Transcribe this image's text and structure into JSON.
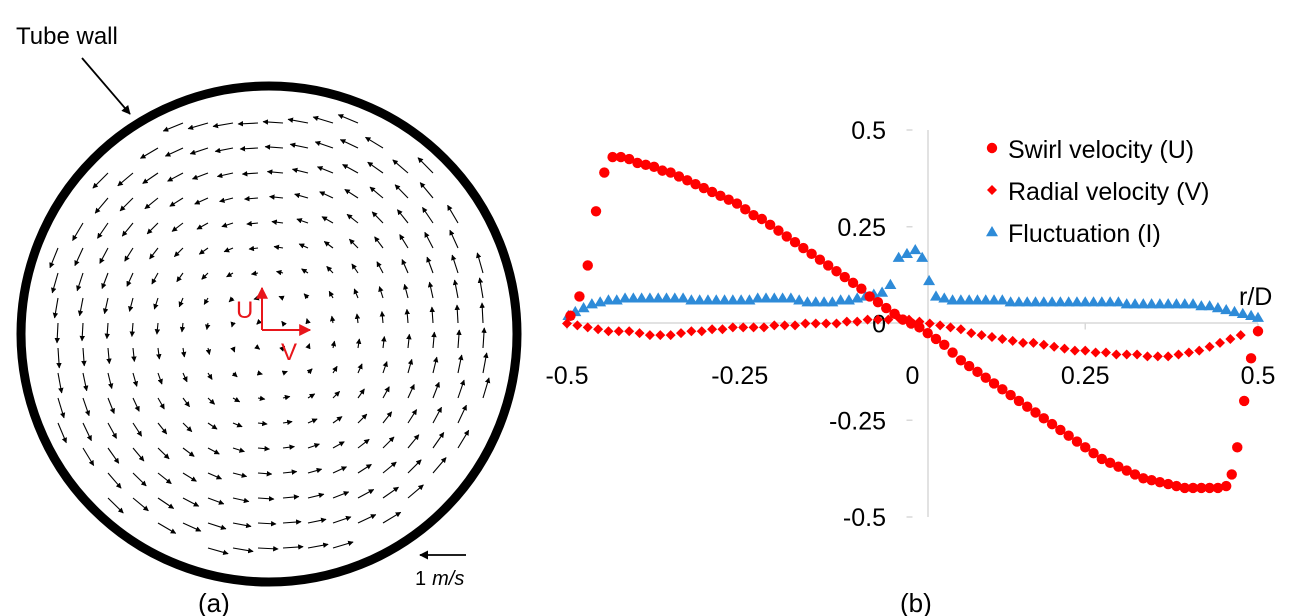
{
  "panel_a": {
    "wall_label": "Tube wall",
    "u_label": "U",
    "v_label": "V",
    "scale_label_number": "1",
    "scale_label_unit": "m/s",
    "caption": "(a)",
    "accent_color": "#e8161b"
  },
  "panel_b": {
    "caption": "(b)"
  },
  "chart_data": {
    "type": "scatter",
    "xlabel": "r/D",
    "ylabel": "",
    "xlim": [
      -0.5,
      0.5
    ],
    "ylim": [
      -0.5,
      0.5
    ],
    "x_ticks": [
      "-0.5",
      "-0.25",
      "0",
      "0.25",
      "0.5"
    ],
    "y_ticks": [
      "0.5",
      "0.25",
      "0",
      "-0.25",
      "-0.5"
    ],
    "grid": false,
    "legend_position": "top-right",
    "series": [
      {
        "name": "Swirl velocity (U)",
        "marker": "circle",
        "color": "#ff0000",
        "x": [
          -0.495,
          -0.482,
          -0.47,
          -0.458,
          -0.446,
          -0.434,
          -0.422,
          -0.41,
          -0.398,
          -0.386,
          -0.374,
          -0.362,
          -0.35,
          -0.338,
          -0.326,
          -0.314,
          -0.302,
          -0.29,
          -0.278,
          -0.266,
          -0.254,
          -0.242,
          -0.23,
          -0.218,
          -0.206,
          -0.194,
          -0.182,
          -0.17,
          -0.158,
          -0.146,
          -0.134,
          -0.122,
          -0.11,
          -0.098,
          -0.086,
          -0.074,
          -0.062,
          -0.05,
          -0.038,
          -0.026,
          -0.014,
          -0.002,
          0.01,
          0.022,
          0.034,
          0.046,
          0.058,
          0.07,
          0.082,
          0.094,
          0.106,
          0.118,
          0.13,
          0.142,
          0.154,
          0.166,
          0.178,
          0.19,
          0.202,
          0.214,
          0.226,
          0.238,
          0.25,
          0.262,
          0.274,
          0.286,
          0.298,
          0.31,
          0.322,
          0.334,
          0.346,
          0.358,
          0.37,
          0.382,
          0.394,
          0.406,
          0.418,
          0.43,
          0.442,
          0.454,
          0.462,
          0.47,
          0.48,
          0.49,
          0.5
        ],
        "y": [
          0.02,
          0.07,
          0.15,
          0.29,
          0.39,
          0.43,
          0.43,
          0.425,
          0.415,
          0.41,
          0.405,
          0.395,
          0.39,
          0.38,
          0.37,
          0.36,
          0.35,
          0.34,
          0.33,
          0.32,
          0.31,
          0.295,
          0.28,
          0.27,
          0.255,
          0.24,
          0.225,
          0.21,
          0.195,
          0.18,
          0.165,
          0.15,
          0.135,
          0.12,
          0.105,
          0.09,
          0.07,
          0.055,
          0.04,
          0.025,
          0.01,
          0.0,
          -0.01,
          -0.025,
          -0.04,
          -0.055,
          -0.075,
          -0.095,
          -0.11,
          -0.125,
          -0.14,
          -0.155,
          -0.17,
          -0.185,
          -0.2,
          -0.215,
          -0.23,
          -0.245,
          -0.26,
          -0.275,
          -0.29,
          -0.305,
          -0.32,
          -0.335,
          -0.35,
          -0.36,
          -0.37,
          -0.38,
          -0.39,
          -0.4,
          -0.405,
          -0.41,
          -0.415,
          -0.42,
          -0.425,
          -0.425,
          -0.425,
          -0.425,
          -0.425,
          -0.42,
          -0.39,
          -0.32,
          -0.2,
          -0.09,
          -0.02
        ]
      },
      {
        "name": "Radial velocity (V)",
        "marker": "diamond",
        "color": "#ff0000",
        "x": [
          -0.5,
          -0.485,
          -0.47,
          -0.455,
          -0.44,
          -0.425,
          -0.41,
          -0.395,
          -0.38,
          -0.365,
          -0.35,
          -0.335,
          -0.32,
          -0.305,
          -0.29,
          -0.275,
          -0.26,
          -0.245,
          -0.23,
          -0.215,
          -0.2,
          -0.185,
          -0.17,
          -0.155,
          -0.14,
          -0.125,
          -0.11,
          -0.095,
          -0.08,
          -0.065,
          -0.05,
          -0.035,
          -0.02,
          -0.005,
          0.01,
          0.025,
          0.04,
          0.055,
          0.07,
          0.085,
          0.1,
          0.115,
          0.13,
          0.145,
          0.16,
          0.175,
          0.19,
          0.205,
          0.22,
          0.235,
          0.25,
          0.265,
          0.28,
          0.295,
          0.31,
          0.325,
          0.34,
          0.355,
          0.37,
          0.385,
          0.4,
          0.415,
          0.43,
          0.445,
          0.46,
          0.475
        ],
        "y": [
          0.0,
          -0.005,
          -0.01,
          -0.015,
          -0.02,
          -0.02,
          -0.02,
          -0.025,
          -0.03,
          -0.03,
          -0.03,
          -0.025,
          -0.02,
          -0.02,
          -0.015,
          -0.015,
          -0.01,
          -0.01,
          -0.01,
          -0.01,
          -0.005,
          -0.005,
          -0.005,
          0.0,
          0.0,
          0.0,
          0.0,
          0.005,
          0.005,
          0.01,
          0.01,
          0.01,
          0.015,
          0.01,
          0.005,
          0.0,
          -0.005,
          -0.01,
          -0.015,
          -0.025,
          -0.03,
          -0.035,
          -0.04,
          -0.045,
          -0.05,
          -0.05,
          -0.055,
          -0.06,
          -0.065,
          -0.07,
          -0.07,
          -0.075,
          -0.075,
          -0.08,
          -0.08,
          -0.08,
          -0.085,
          -0.085,
          -0.085,
          -0.08,
          -0.075,
          -0.07,
          -0.06,
          -0.05,
          -0.04,
          -0.03
        ]
      },
      {
        "name": "Fluctuation (I)",
        "marker": "triangle",
        "color": "#2e8bd8",
        "x": [
          -0.498,
          -0.488,
          -0.476,
          -0.464,
          -0.452,
          -0.44,
          -0.428,
          -0.416,
          -0.404,
          -0.392,
          -0.38,
          -0.368,
          -0.356,
          -0.344,
          -0.332,
          -0.32,
          -0.308,
          -0.296,
          -0.284,
          -0.272,
          -0.26,
          -0.248,
          -0.236,
          -0.224,
          -0.212,
          -0.2,
          -0.188,
          -0.176,
          -0.164,
          -0.152,
          -0.14,
          -0.128,
          -0.116,
          -0.104,
          -0.092,
          -0.08,
          -0.068,
          -0.056,
          -0.044,
          -0.032,
          -0.02,
          -0.008,
          0.004,
          0.014,
          0.024,
          0.034,
          0.046,
          0.058,
          0.07,
          0.082,
          0.094,
          0.106,
          0.118,
          0.13,
          0.142,
          0.154,
          0.166,
          0.178,
          0.19,
          0.202,
          0.214,
          0.226,
          0.238,
          0.25,
          0.262,
          0.274,
          0.286,
          0.298,
          0.31,
          0.322,
          0.334,
          0.346,
          0.358,
          0.37,
          0.382,
          0.394,
          0.406,
          0.418,
          0.43,
          0.442,
          0.454,
          0.466,
          0.478,
          0.49,
          0.5
        ],
        "y": [
          0.02,
          0.03,
          0.04,
          0.05,
          0.055,
          0.06,
          0.06,
          0.065,
          0.065,
          0.065,
          0.065,
          0.065,
          0.065,
          0.065,
          0.065,
          0.06,
          0.06,
          0.06,
          0.06,
          0.06,
          0.06,
          0.06,
          0.06,
          0.065,
          0.065,
          0.065,
          0.065,
          0.065,
          0.06,
          0.055,
          0.055,
          0.055,
          0.055,
          0.06,
          0.06,
          0.065,
          0.07,
          0.075,
          0.08,
          0.1,
          0.17,
          0.18,
          0.19,
          0.17,
          0.11,
          0.07,
          0.065,
          0.06,
          0.06,
          0.06,
          0.06,
          0.06,
          0.06,
          0.06,
          0.055,
          0.055,
          0.055,
          0.055,
          0.055,
          0.055,
          0.055,
          0.055,
          0.055,
          0.055,
          0.055,
          0.055,
          0.055,
          0.055,
          0.05,
          0.05,
          0.05,
          0.05,
          0.05,
          0.05,
          0.05,
          0.05,
          0.05,
          0.045,
          0.045,
          0.04,
          0.035,
          0.03,
          0.025,
          0.02,
          0.015
        ]
      }
    ]
  }
}
